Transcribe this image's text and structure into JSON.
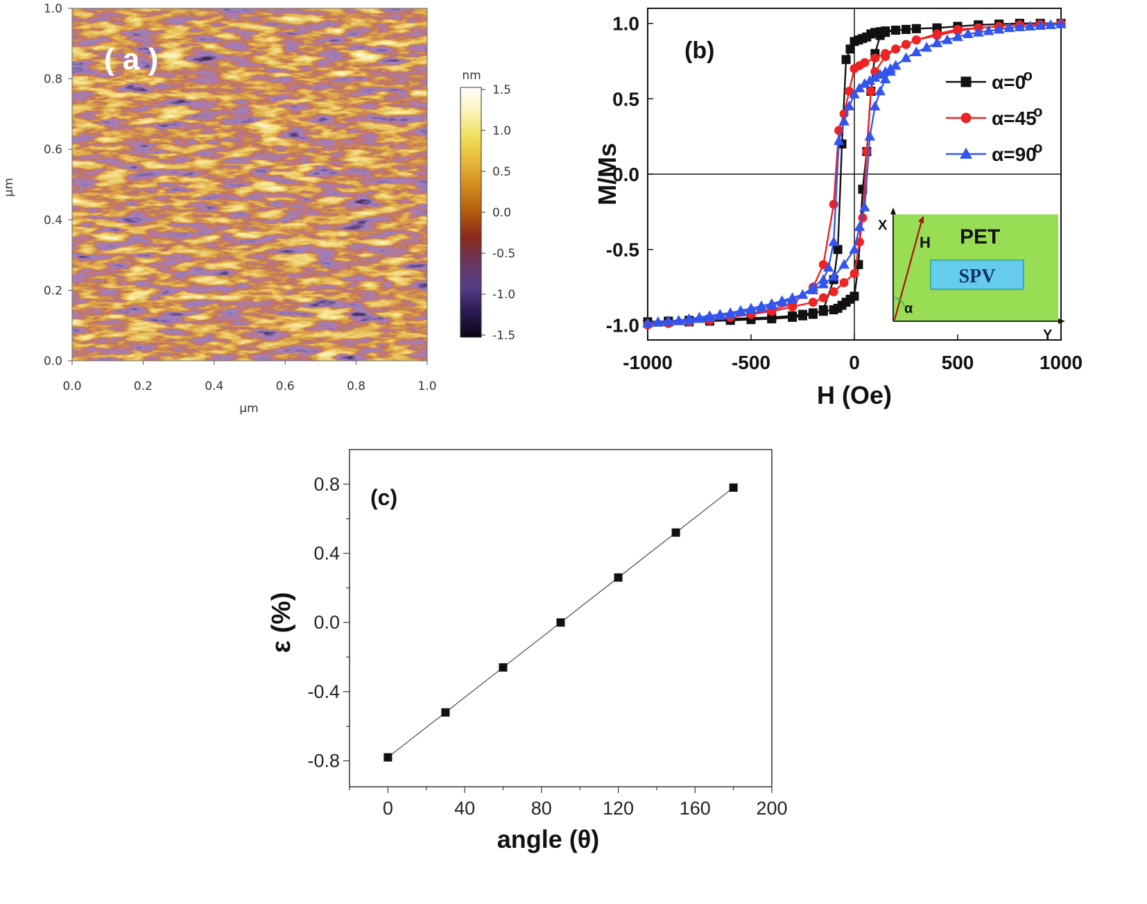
{
  "colors": {
    "black_series": "#111111",
    "red_series": "#ee2222",
    "blue_series": "#3355ee",
    "pet_green": "#99dd55",
    "spv_blue": "#66ccee",
    "arrow_red": "#aa1111"
  },
  "panel_a": {
    "label": "( a )",
    "type": "heatmap",
    "ylabel": "μm",
    "xlabel": "μm",
    "x_ticks": [
      "0.0",
      "0.2",
      "0.4",
      "0.6",
      "0.8",
      "1.0"
    ],
    "y_ticks": [
      "0.0",
      "0.2",
      "0.4",
      "0.6",
      "0.8",
      "1.0"
    ],
    "colorbar": {
      "unit": "nm",
      "ticks": [
        "1.5",
        "1.0",
        "0.5",
        "0.0",
        "-0.5",
        "-1.0",
        "-1.5"
      ],
      "range": [
        -1.5,
        1.5
      ],
      "colors": [
        "#0c0614",
        "#2a1a52",
        "#553e88",
        "#6a3560",
        "#8a2a1a",
        "#b35a10",
        "#d08a1c",
        "#e6b43a",
        "#eede58",
        "#fbf2b8",
        "#ffffff"
      ]
    },
    "ylim": [
      0,
      1
    ],
    "xlim": [
      0,
      1
    ]
  },
  "chart_data": [
    {
      "type": "line",
      "label": "(b)",
      "xlabel": "H (Oe)",
      "ylabel": "M/Ms",
      "xlim": [
        -1000,
        1000
      ],
      "ylim": [
        -1.1,
        1.1
      ],
      "x_ticks": [
        "-1000",
        "-500",
        "0",
        "500",
        "1000"
      ],
      "y_ticks": [
        "1.0",
        "0.5",
        "0.0",
        "-0.5",
        "-1.0"
      ],
      "legend_position": "top-right",
      "series": [
        {
          "name": "α=0°",
          "legend_text": "α=0",
          "legend_sup": "o",
          "color_key": "black_series",
          "marker": "square",
          "x": [
            -1000,
            -900,
            -800,
            -700,
            -600,
            -500,
            -400,
            -300,
            -250,
            -200,
            -150,
            -100,
            -80,
            -60,
            -40,
            -20,
            0,
            20,
            40,
            60,
            80,
            100,
            125,
            150,
            200,
            250,
            300,
            400,
            500,
            600,
            700,
            800,
            900,
            1000,
            1000,
            900,
            800,
            700,
            600,
            500,
            400,
            300,
            250,
            200,
            150,
            125,
            100,
            80,
            60,
            40,
            20,
            0,
            -20,
            -40,
            -60,
            -80,
            -100,
            -150,
            -200,
            -250,
            -300,
            -400,
            -500,
            -600,
            -700,
            -800,
            -900,
            -1000
          ],
          "y": [
            -0.98,
            -0.975,
            -0.97,
            -0.965,
            -0.96,
            -0.955,
            -0.95,
            -0.94,
            -0.93,
            -0.92,
            -0.91,
            -0.9,
            -0.89,
            -0.87,
            -0.85,
            -0.83,
            -0.81,
            -0.6,
            -0.1,
            0.15,
            0.55,
            0.8,
            0.92,
            0.94,
            0.955,
            0.96,
            0.965,
            0.97,
            0.98,
            0.99,
            0.995,
            1.0,
            1.0,
            1.0,
            1.0,
            1.0,
            1.0,
            0.995,
            0.99,
            0.98,
            0.97,
            0.965,
            0.96,
            0.955,
            0.95,
            0.945,
            0.94,
            0.93,
            0.91,
            0.9,
            0.89,
            0.88,
            0.83,
            0.76,
            0.2,
            -0.5,
            -0.7,
            -0.9,
            -0.93,
            -0.94,
            -0.95,
            -0.96,
            -0.965,
            -0.97,
            -0.975,
            -0.98,
            -0.98,
            -0.98
          ]
        },
        {
          "name": "α=45°",
          "legend_text": "α=45",
          "legend_sup": "o",
          "color_key": "red_series",
          "marker": "circle",
          "x": [
            -1000,
            -900,
            -800,
            -700,
            -600,
            -500,
            -400,
            -300,
            -200,
            -150,
            -100,
            -50,
            0,
            25,
            40,
            60,
            80,
            100,
            150,
            200,
            250,
            300,
            400,
            500,
            600,
            700,
            800,
            900,
            1000,
            1000,
            900,
            800,
            700,
            600,
            500,
            400,
            300,
            250,
            200,
            150,
            100,
            50,
            25,
            0,
            -25,
            -50,
            -75,
            -100,
            -150,
            -200,
            -300,
            -400,
            -500,
            -600,
            -700,
            -800,
            -900,
            -1000
          ],
          "y": [
            -1.0,
            -0.99,
            -0.98,
            -0.97,
            -0.95,
            -0.93,
            -0.91,
            -0.88,
            -0.85,
            -0.82,
            -0.78,
            -0.72,
            -0.66,
            -0.45,
            -0.29,
            0.15,
            0.55,
            0.68,
            0.78,
            0.83,
            0.86,
            0.89,
            0.92,
            0.95,
            0.97,
            0.98,
            0.99,
            0.995,
            1.0,
            1.0,
            0.995,
            0.99,
            0.98,
            0.97,
            0.96,
            0.93,
            0.89,
            0.86,
            0.83,
            0.8,
            0.77,
            0.74,
            0.72,
            0.7,
            0.55,
            0.4,
            0.29,
            -0.2,
            -0.6,
            -0.75,
            -0.86,
            -0.9,
            -0.93,
            -0.95,
            -0.97,
            -0.98,
            -0.99,
            -1.0
          ]
        },
        {
          "name": "α=90°",
          "legend_text": "α=90",
          "legend_sup": "o",
          "color_key": "blue_series",
          "marker": "triangle",
          "x": [
            -1000,
            -950,
            -900,
            -850,
            -800,
            -750,
            -700,
            -650,
            -600,
            -550,
            -500,
            -450,
            -400,
            -350,
            -300,
            -250,
            -200,
            -150,
            -100,
            -50,
            0,
            25,
            50,
            75,
            100,
            125,
            150,
            175,
            200,
            250,
            300,
            350,
            400,
            450,
            500,
            550,
            600,
            650,
            700,
            750,
            800,
            850,
            900,
            950,
            1000,
            1000,
            950,
            900,
            850,
            800,
            750,
            700,
            650,
            600,
            550,
            500,
            450,
            400,
            350,
            300,
            250,
            200,
            175,
            150,
            125,
            100,
            75,
            50,
            25,
            0,
            -25,
            -50,
            -75,
            -100,
            -125,
            -150,
            -200,
            -250,
            -300,
            -350,
            -400,
            -450,
            -500,
            -550,
            -600,
            -650,
            -700,
            -750,
            -800,
            -850,
            -900,
            -950,
            -1000
          ],
          "y": [
            -0.99,
            -0.98,
            -0.975,
            -0.97,
            -0.96,
            -0.95,
            -0.94,
            -0.93,
            -0.92,
            -0.905,
            -0.89,
            -0.875,
            -0.86,
            -0.84,
            -0.82,
            -0.8,
            -0.77,
            -0.73,
            -0.68,
            -0.6,
            -0.5,
            -0.35,
            -0.22,
            0.25,
            0.45,
            0.55,
            0.63,
            0.68,
            0.72,
            0.77,
            0.81,
            0.84,
            0.87,
            0.89,
            0.91,
            0.93,
            0.94,
            0.95,
            0.96,
            0.97,
            0.975,
            0.98,
            0.985,
            0.99,
            0.995,
            0.995,
            0.99,
            0.985,
            0.98,
            0.975,
            0.97,
            0.96,
            0.95,
            0.94,
            0.93,
            0.91,
            0.89,
            0.87,
            0.84,
            0.81,
            0.77,
            0.72,
            0.7,
            0.68,
            0.66,
            0.64,
            0.62,
            0.6,
            0.57,
            0.53,
            0.45,
            0.35,
            0.22,
            -0.45,
            -0.62,
            -0.7,
            -0.75,
            -0.8,
            -0.83,
            -0.85,
            -0.87,
            -0.89,
            -0.9,
            -0.915,
            -0.93,
            -0.94,
            -0.95,
            -0.96,
            -0.97,
            -0.975,
            -0.98,
            -0.985,
            -0.99
          ]
        }
      ],
      "inset": {
        "pet": "PET",
        "spv": "SPV",
        "x_axis": "X",
        "y_axis": "Y",
        "field": "H",
        "angle": "α"
      }
    },
    {
      "type": "line",
      "label": "(c)",
      "xlabel": "angle (θ)",
      "ylabel": "ε (%)",
      "xlim": [
        -20,
        200
      ],
      "ylim": [
        -0.95,
        1.0
      ],
      "x_ticks": [
        "0",
        "40",
        "80",
        "120",
        "160",
        "200"
      ],
      "y_ticks": [
        "0.8",
        "0.4",
        "0.0",
        "-0.4",
        "-0.8"
      ],
      "series": [
        {
          "marker": "square",
          "x": [
            0,
            30,
            60,
            90,
            120,
            150,
            180
          ],
          "y": [
            -0.78,
            -0.52,
            -0.26,
            0.0,
            0.26,
            0.52,
            0.78
          ]
        }
      ]
    }
  ]
}
